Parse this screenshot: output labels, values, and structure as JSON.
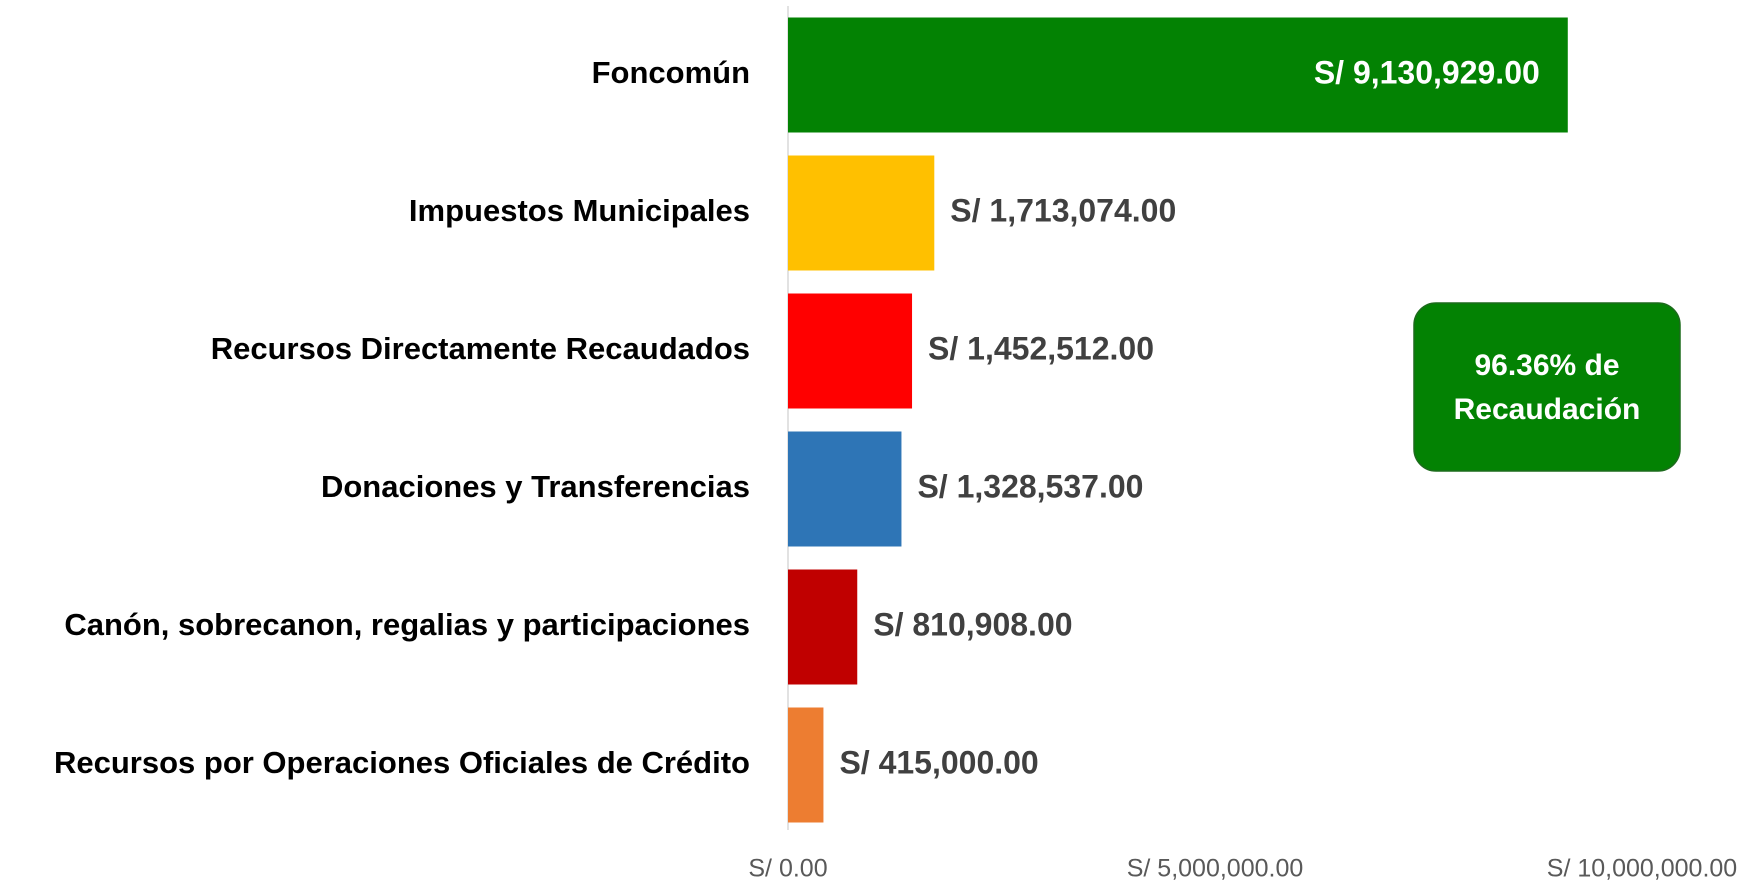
{
  "chart_data": {
    "type": "bar",
    "orientation": "horizontal",
    "categories": [
      "Foncomún",
      "Impuestos Municipales",
      "Recursos Directamente Recaudados",
      "Donaciones y Transferencias",
      "Canón, sobrecanon, regalias y participaciones",
      "Recursos por Operaciones Oficiales de Crédito"
    ],
    "values": [
      9130929,
      1713074,
      1452512,
      1328537,
      810908,
      415000
    ],
    "value_labels": [
      "S/ 9,130,929.00",
      "S/ 1,713,074.00",
      "S/ 1,452,512.00",
      "S/ 1,328,537.00",
      "S/ 810,908.00",
      "S/ 415,000.00"
    ],
    "colors": [
      "#038203",
      "#ffc000",
      "#ff0000",
      "#2e75b6",
      "#c00000",
      "#ed7d31"
    ],
    "xlim": [
      0,
      10000000
    ],
    "xticks": [
      {
        "value": 0,
        "label": "S/ 0.00"
      },
      {
        "value": 5000000,
        "label": "S/ 5,000,000.00"
      },
      {
        "value": 10000000,
        "label": "S/ 10,000,000.00"
      }
    ],
    "annotation": {
      "lines": [
        "96.36% de",
        "Recaudación"
      ],
      "color": "#038203"
    }
  }
}
